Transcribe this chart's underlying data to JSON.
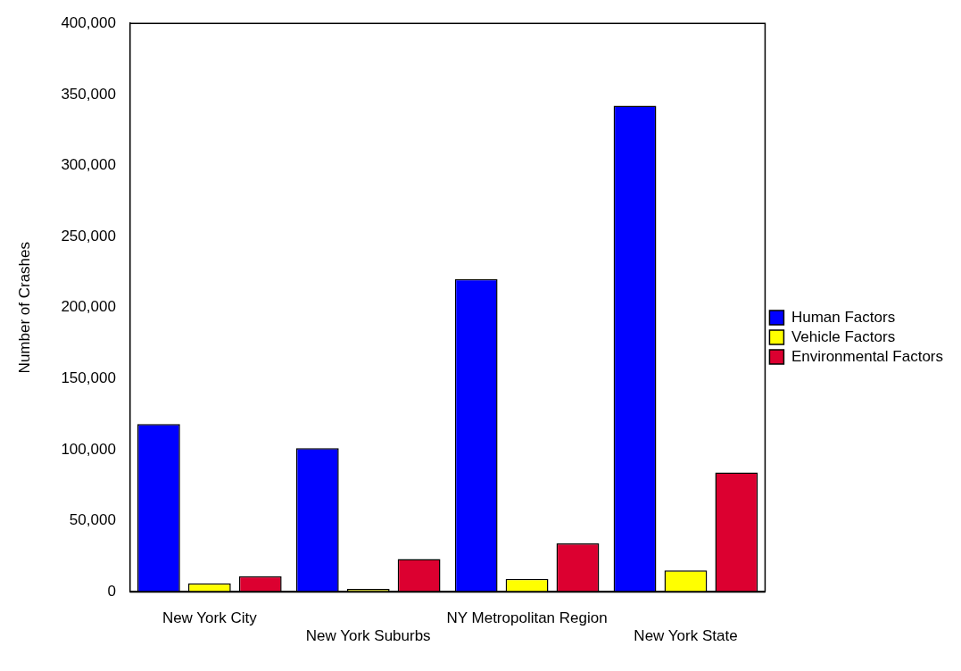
{
  "chart_data": {
    "type": "bar",
    "ylabel": "Number of Crashes",
    "categories": [
      "New York City",
      "New York Suburbs",
      "NY Metropolitan Region",
      "New York State"
    ],
    "series": [
      {
        "name": "Human Factors",
        "color": "#0000ff",
        "values": [
          118000,
          101000,
          220000,
          342000
        ]
      },
      {
        "name": "Vehicle Factors",
        "color": "#ffff00",
        "values": [
          6000,
          2000,
          9000,
          15000
        ]
      },
      {
        "name": "Environmental Factors",
        "color": "#dc0030",
        "values": [
          11000,
          23000,
          34000,
          84000
        ]
      }
    ],
    "ylim": [
      0,
      400000
    ],
    "yticks": [
      {
        "value": 0,
        "label": "0"
      },
      {
        "value": 50000,
        "label": "50,000"
      },
      {
        "value": 100000,
        "label": "100,000"
      },
      {
        "value": 150000,
        "label": "150,000"
      },
      {
        "value": 200000,
        "label": "200,000"
      },
      {
        "value": 250000,
        "label": "250,000"
      },
      {
        "value": 300000,
        "label": "300,000"
      },
      {
        "value": 350000,
        "label": "350,000"
      },
      {
        "value": 400000,
        "label": "400,000"
      }
    ],
    "grid": false,
    "legend": "right"
  }
}
